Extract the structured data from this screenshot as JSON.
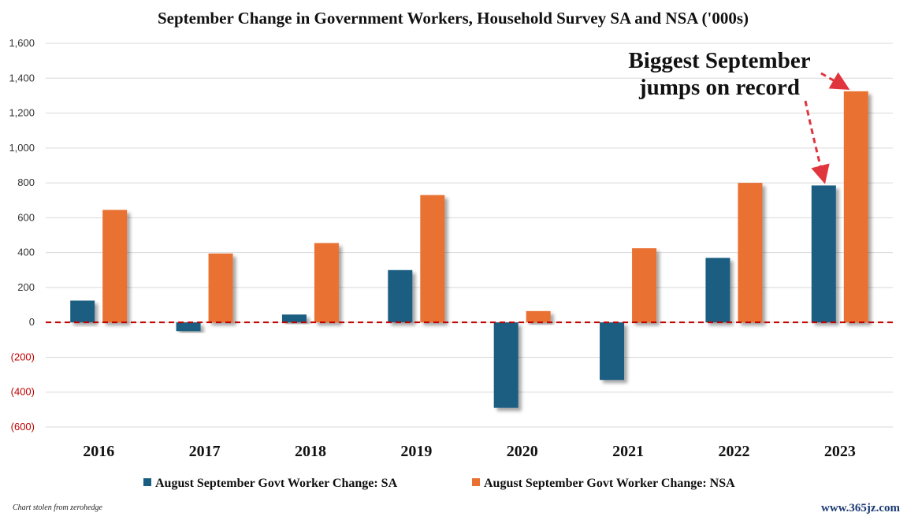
{
  "chart_data": {
    "type": "bar",
    "title": "September Change in Government Workers, Household Survey SA and NSA ('000s)",
    "categories": [
      "2016",
      "2017",
      "2018",
      "2019",
      "2020",
      "2021",
      "2022",
      "2023"
    ],
    "series": [
      {
        "name": "August September Govt Worker Change: SA",
        "color": "#1a5d82",
        "values": [
          125,
          -50,
          45,
          300,
          -490,
          -330,
          370,
          785
        ]
      },
      {
        "name": "August September Govt Worker Change: NSA",
        "color": "#e97132",
        "values": [
          645,
          395,
          455,
          730,
          65,
          425,
          800,
          1325
        ]
      }
    ],
    "ylim": [
      -600,
      1600
    ],
    "yticks": [
      -600,
      -400,
      -200,
      0,
      200,
      400,
      600,
      800,
      1000,
      1200,
      1400,
      1600
    ],
    "ytick_labels": [
      "(600)",
      "(400)",
      "(200)",
      "0",
      "200",
      "400",
      "600",
      "800",
      "1,000",
      "1,200",
      "1,400",
      "1,600"
    ],
    "zero_line": {
      "style": "dashed",
      "color": "#c00000"
    },
    "annotation_lines": [
      "Biggest September",
      "jumps on record"
    ],
    "annotation_arrow_color": "#e0353d",
    "grid": true,
    "legend_position": "bottom"
  },
  "footer": {
    "source_note": "Chart stolen from zerohedge",
    "watermark": "www.365jz.com"
  }
}
